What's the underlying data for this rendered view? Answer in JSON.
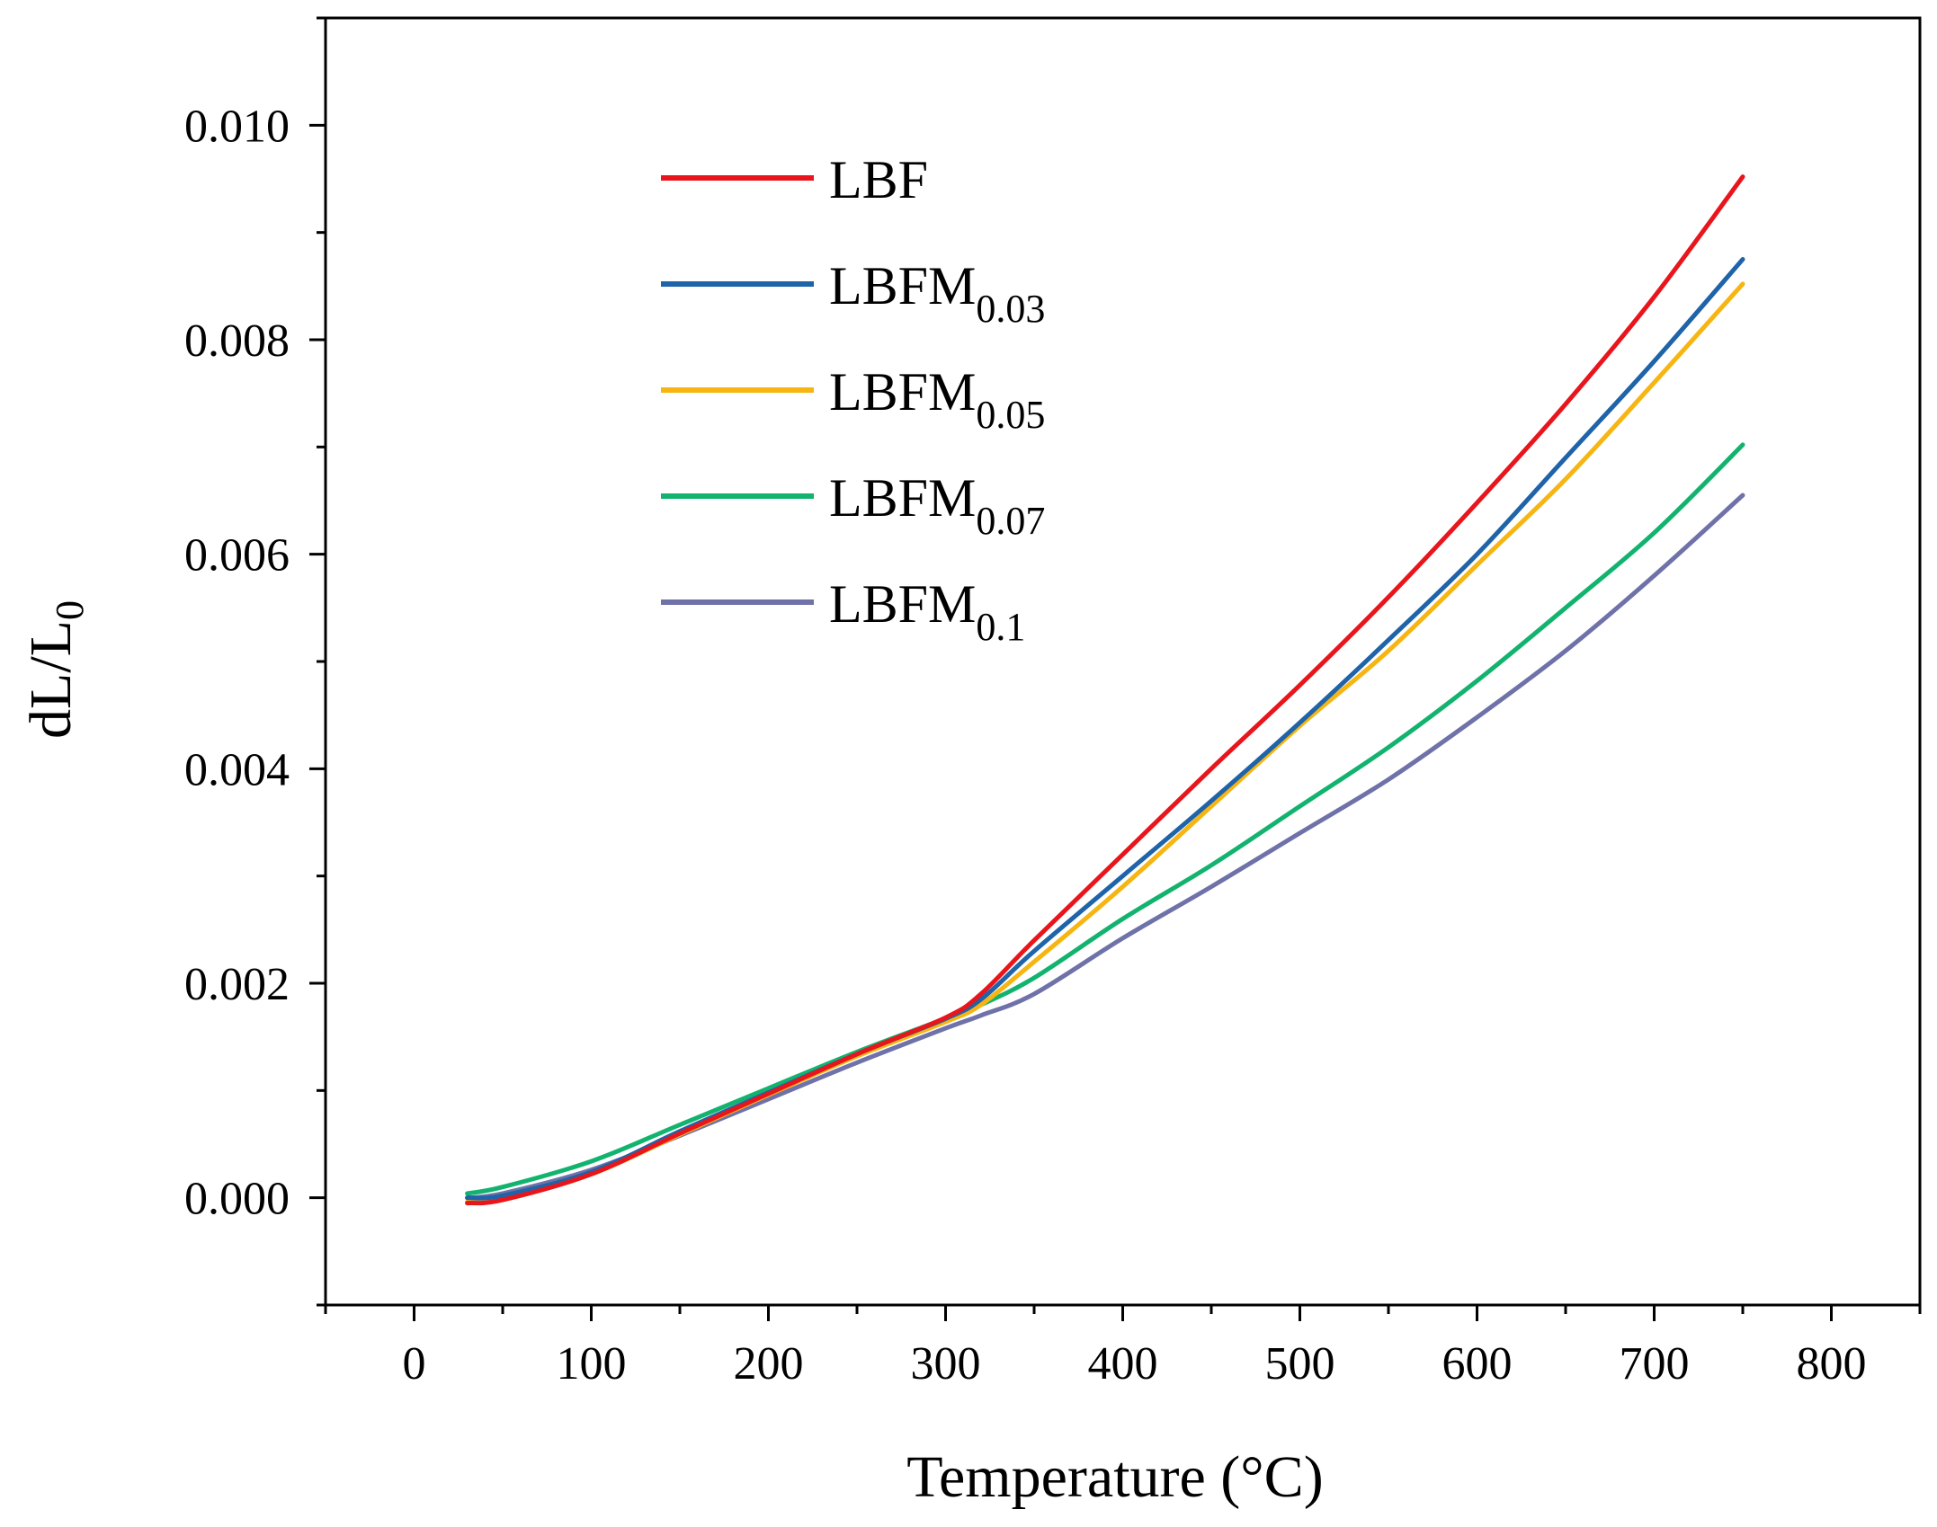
{
  "chart_data": {
    "type": "line",
    "title": "",
    "xlabel": "Temperature (°C)",
    "ylabel_main": "dL/L",
    "ylabel_sub": "0",
    "xlim": [
      -50,
      850
    ],
    "ylim": [
      -0.001,
      0.011
    ],
    "x_ticks": [
      "0",
      "100",
      "200",
      "300",
      "400",
      "500",
      "600",
      "700",
      "800"
    ],
    "y_ticks": [
      "0.000",
      "0.002",
      "0.004",
      "0.006",
      "0.008",
      "0.010"
    ],
    "legend_position": "upper-left",
    "series": [
      {
        "name_main": "LBF",
        "name_sub": "",
        "color": "#e8161c",
        "x": [
          30,
          50,
          100,
          150,
          200,
          250,
          300,
          320,
          350,
          400,
          450,
          500,
          550,
          600,
          650,
          700,
          750
        ],
        "y": [
          -5e-05,
          -2e-05,
          0.00022,
          0.0006,
          0.00097,
          0.00134,
          0.00168,
          0.0019,
          0.0024,
          0.0032,
          0.004,
          0.00478,
          0.0056,
          0.00648,
          0.0074,
          0.0084,
          0.00952
        ]
      },
      {
        "name_main": "LBFM",
        "name_sub": "0.03",
        "color": "#1f63a8",
        "x": [
          30,
          50,
          100,
          150,
          200,
          250,
          300,
          320,
          350,
          400,
          450,
          500,
          550,
          600,
          650,
          700,
          750
        ],
        "y": [
          0.0,
          2e-05,
          0.00024,
          0.00062,
          0.00098,
          0.00134,
          0.00167,
          0.00185,
          0.0023,
          0.003,
          0.0037,
          0.00443,
          0.0052,
          0.006,
          0.0069,
          0.0078,
          0.00875
        ]
      },
      {
        "name_main": "LBFM",
        "name_sub": "0.05",
        "color": "#f7b512",
        "x": [
          30,
          50,
          100,
          150,
          200,
          250,
          300,
          320,
          350,
          400,
          450,
          500,
          550,
          600,
          650,
          700,
          750
        ],
        "y": [
          -4e-05,
          -2e-05,
          0.00022,
          0.00059,
          0.00096,
          0.00132,
          0.00164,
          0.0018,
          0.0022,
          0.0029,
          0.00365,
          0.0044,
          0.0051,
          0.0059,
          0.0067,
          0.0076,
          0.00852
        ]
      },
      {
        "name_main": "LBFM",
        "name_sub": "0.07",
        "color": "#12b36e",
        "x": [
          30,
          50,
          100,
          150,
          200,
          250,
          300,
          320,
          350,
          400,
          450,
          500,
          550,
          600,
          650,
          700,
          750
        ],
        "y": [
          4e-05,
          0.0001,
          0.00034,
          0.00068,
          0.00102,
          0.00136,
          0.00167,
          0.0018,
          0.00205,
          0.0026,
          0.0031,
          0.00365,
          0.0042,
          0.00482,
          0.0055,
          0.0062,
          0.00702
        ]
      },
      {
        "name_main": "LBFM",
        "name_sub": "0.1",
        "color": "#6f72a8",
        "x": [
          30,
          50,
          100,
          150,
          200,
          250,
          300,
          320,
          350,
          400,
          450,
          500,
          550,
          600,
          650,
          700,
          750
        ],
        "y": [
          0.0,
          4e-05,
          0.00026,
          0.00058,
          0.00092,
          0.00126,
          0.00158,
          0.0017,
          0.0019,
          0.00242,
          0.0029,
          0.0034,
          0.0039,
          0.00448,
          0.0051,
          0.0058,
          0.00655
        ]
      }
    ]
  }
}
